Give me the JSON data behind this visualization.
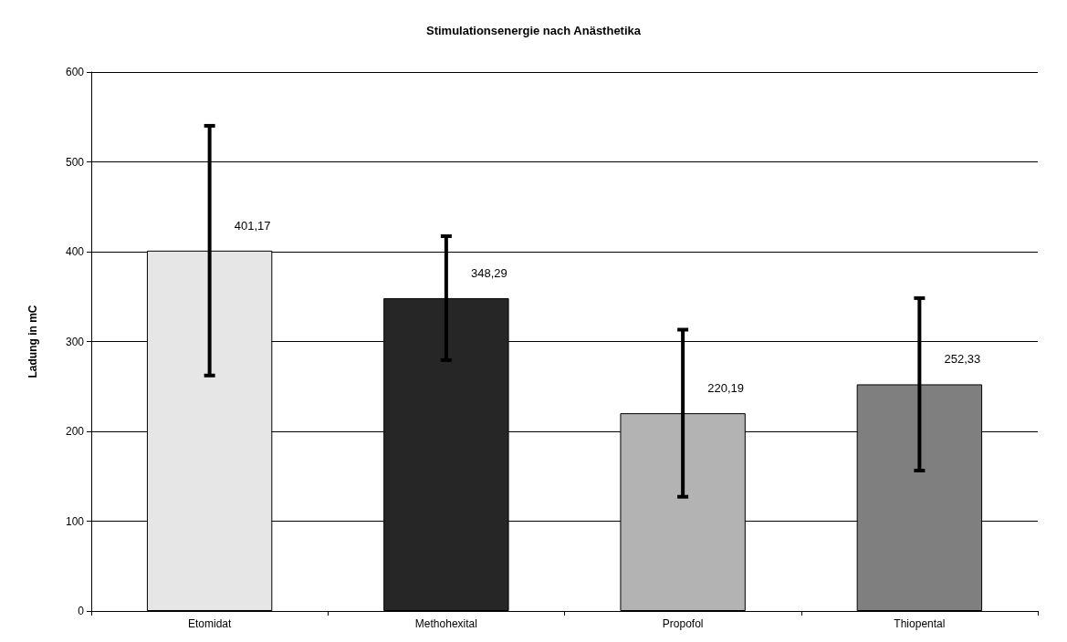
{
  "chart_data": {
    "type": "bar",
    "title": "Stimulationsenergie nach Anästhetika",
    "ylabel": "Ladung in mC",
    "categories": [
      "Etomidat",
      "Methohexital",
      "Propofol",
      "Thiopental"
    ],
    "values": [
      401.17,
      348.29,
      220.19,
      252.33
    ],
    "colors": [
      "#e6e6e6",
      "#262626",
      "#b3b3b3",
      "#7f7f7f"
    ],
    "errors": [
      139,
      69,
      93,
      96
    ],
    "value_labels": [
      "401,17",
      "348,29",
      "220,19",
      "252,33"
    ],
    "ylim": [
      0,
      600
    ],
    "yticks": [
      0,
      100,
      200,
      300,
      400,
      500,
      600
    ],
    "grid": "y"
  }
}
